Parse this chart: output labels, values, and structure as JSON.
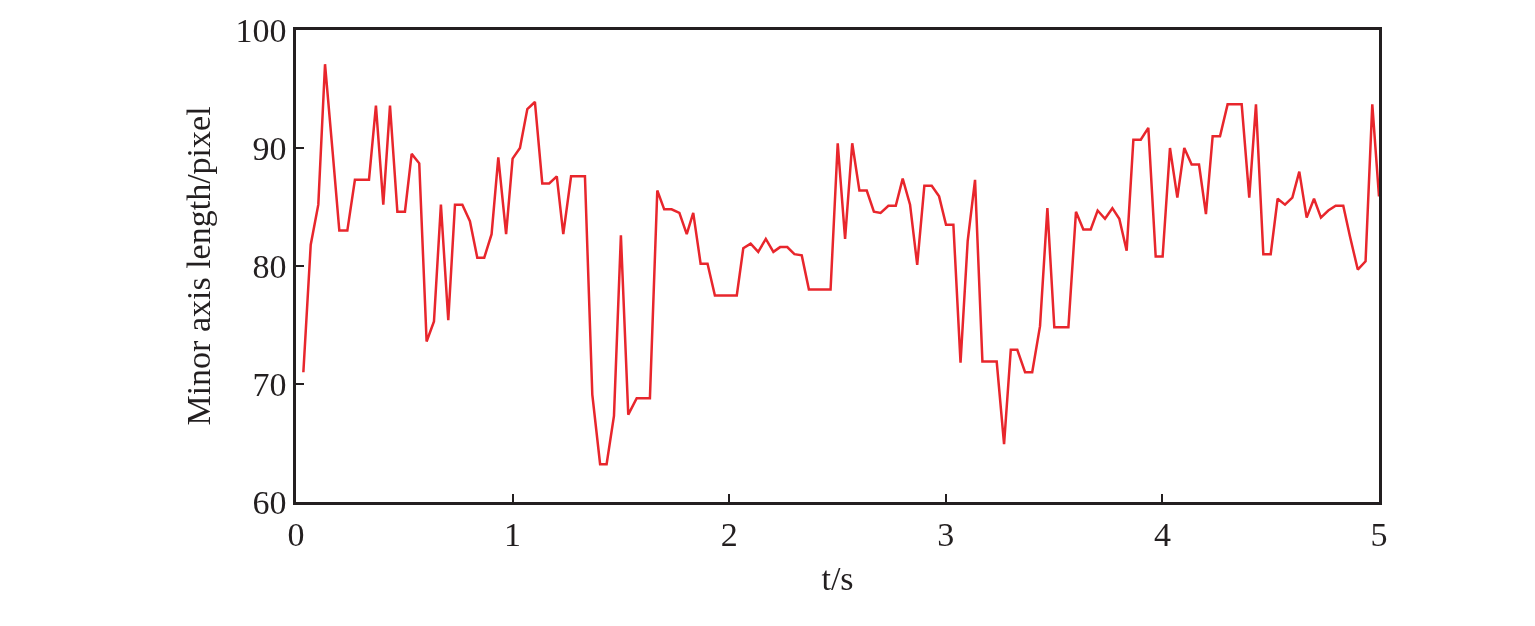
{
  "chart_data": {
    "type": "line",
    "xlabel": "t/s",
    "ylabel": "Minor axis length/pixel",
    "x": [
      0.034,
      0.068,
      0.103,
      0.134,
      0.169,
      0.2,
      0.237,
      0.272,
      0.337,
      0.369,
      0.403,
      0.434,
      0.468,
      0.503,
      0.534,
      0.569,
      0.603,
      0.637,
      0.669,
      0.703,
      0.734,
      0.768,
      0.803,
      0.837,
      0.869,
      0.903,
      0.934,
      0.97,
      1.0,
      1.034,
      1.068,
      1.103,
      1.137,
      1.169,
      1.204,
      1.234,
      1.27,
      1.334,
      1.368,
      1.404,
      1.434,
      1.468,
      1.5,
      1.534,
      1.573,
      1.634,
      1.668,
      1.7,
      1.734,
      1.77,
      1.804,
      1.834,
      1.868,
      1.9,
      1.934,
      2.035,
      2.065,
      2.099,
      2.134,
      2.169,
      2.204,
      2.235,
      2.268,
      2.301,
      2.335,
      2.368,
      2.468,
      2.501,
      2.535,
      2.568,
      2.601,
      2.635,
      2.668,
      2.699,
      2.735,
      2.769,
      2.801,
      2.835,
      2.868,
      2.901,
      2.935,
      2.969,
      3.001,
      3.035,
      3.068,
      3.101,
      3.135,
      3.169,
      3.235,
      3.269,
      3.3,
      3.33,
      3.366,
      3.399,
      3.435,
      3.469,
      3.501,
      3.566,
      3.601,
      3.635,
      3.669,
      3.701,
      3.735,
      3.769,
      3.801,
      3.835,
      3.866,
      3.9,
      3.935,
      3.969,
      4.001,
      4.035,
      4.069,
      4.101,
      4.135,
      4.169,
      4.201,
      4.232,
      4.266,
      4.301,
      4.366,
      4.401,
      4.432,
      4.466,
      4.5,
      4.532,
      4.566,
      4.6,
      4.632,
      4.666,
      4.7,
      4.732,
      4.766,
      4.8,
      4.835,
      4.866,
      4.902,
      4.938,
      4.969,
      5.0
    ],
    "series": [
      {
        "color": "#e8262c",
        "values": [
          71.0,
          81.8,
          85.2,
          97.1,
          89.7,
          83.0,
          83.0,
          87.3,
          87.3,
          93.6,
          85.2,
          93.6,
          84.6,
          84.6,
          89.5,
          88.7,
          73.6,
          75.3,
          85.2,
          75.4,
          85.2,
          85.2,
          83.8,
          80.7,
          80.7,
          82.7,
          89.2,
          82.7,
          89.1,
          90.0,
          93.3,
          93.9,
          87.0,
          87.0,
          87.6,
          82.7,
          87.6,
          87.6,
          69.1,
          63.2,
          63.2,
          67.3,
          82.6,
          67.4,
          68.8,
          68.8,
          86.4,
          84.8,
          84.8,
          84.5,
          82.7,
          84.5,
          80.2,
          80.2,
          77.5,
          77.5,
          81.5,
          81.9,
          81.2,
          82.3,
          81.2,
          81.6,
          81.6,
          81.0,
          80.9,
          78.0,
          78.0,
          90.4,
          82.3,
          90.4,
          86.4,
          86.4,
          84.6,
          84.5,
          85.1,
          85.1,
          87.4,
          85.2,
          80.1,
          86.8,
          86.8,
          85.9,
          83.5,
          83.5,
          71.8,
          82.1,
          87.3,
          71.9,
          71.9,
          64.9,
          72.9,
          72.9,
          71.0,
          71.0,
          74.9,
          84.9,
          74.8,
          74.8,
          84.6,
          83.1,
          83.1,
          84.7,
          84.0,
          84.9,
          84.0,
          81.3,
          90.7,
          90.7,
          91.7,
          80.8,
          80.8,
          90.0,
          85.8,
          90.0,
          88.6,
          88.6,
          84.4,
          91.0,
          91.0,
          93.7,
          93.7,
          85.8,
          93.7,
          81.0,
          81.0,
          85.7,
          85.2,
          85.8,
          88.0,
          84.1,
          85.7,
          84.1,
          84.7,
          85.1,
          85.1,
          82.5,
          79.7,
          80.4,
          93.7,
          85.9
        ]
      }
    ],
    "xlim": [
      0,
      5
    ],
    "xticks": [
      0,
      1,
      2,
      3,
      4,
      5
    ],
    "ylim": [
      60,
      100
    ],
    "yticks": [
      60,
      70,
      80,
      90,
      100
    ],
    "marker": "none",
    "line_style": "solid"
  }
}
